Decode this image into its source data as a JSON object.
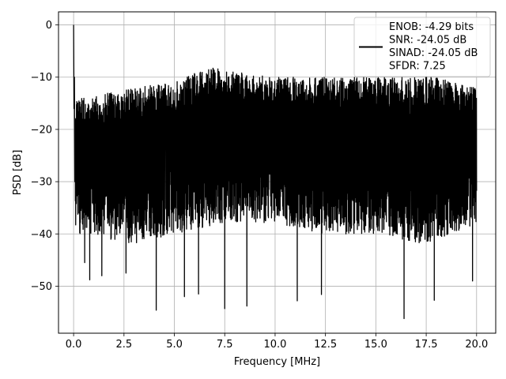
{
  "chart_data": {
    "type": "line",
    "title": "",
    "xlabel": "Frequency [MHz]",
    "ylabel": "PSD [dB]",
    "xlim": [
      -0.75,
      20.95
    ],
    "ylim": [
      -59,
      2.5
    ],
    "xticks": [
      0.0,
      2.5,
      5.0,
      7.5,
      10.0,
      12.5,
      15.0,
      17.5,
      20.0
    ],
    "xtick_labels": [
      "0.0",
      "2.5",
      "5.0",
      "7.5",
      "10.0",
      "12.5",
      "15.0",
      "17.5",
      "20.0"
    ],
    "yticks": [
      0,
      -10,
      -20,
      -30,
      -40,
      -50
    ],
    "ytick_labels": [
      "0",
      "−10",
      "−20",
      "−30",
      "−40",
      "−50"
    ],
    "grid": true,
    "legend_position": "top-right",
    "series": [
      {
        "color": "#000000",
        "x_range": [
          0.0,
          20.0
        ],
        "peak": {
          "x": 0.0,
          "y": 0.0
        },
        "upper_envelope": {
          "x": [
            0.5,
            3,
            5,
            6.75,
            8,
            10,
            12,
            14,
            16,
            18,
            20
          ],
          "y": [
            -14,
            -12,
            -11,
            -8,
            -9,
            -10,
            -10,
            -10,
            -10,
            -10,
            -12
          ]
        },
        "lower_envelope": {
          "x": [
            0.5,
            3,
            5,
            7.5,
            10,
            12.5,
            15,
            17.5,
            20
          ],
          "y": [
            -40,
            -42,
            -40,
            -38,
            -38,
            -40,
            -40,
            -42,
            -38
          ]
        },
        "deep_notches": [
          {
            "x": 0.55,
            "y": -45.5
          },
          {
            "x": 0.8,
            "y": -48.8
          },
          {
            "x": 1.4,
            "y": -48
          },
          {
            "x": 2.6,
            "y": -47.5
          },
          {
            "x": 4.1,
            "y": -54.6
          },
          {
            "x": 5.5,
            "y": -52
          },
          {
            "x": 6.2,
            "y": -51.5
          },
          {
            "x": 7.5,
            "y": -54.3
          },
          {
            "x": 8.6,
            "y": -53.8
          },
          {
            "x": 11.1,
            "y": -52.8
          },
          {
            "x": 12.3,
            "y": -51.6
          },
          {
            "x": 16.4,
            "y": -56.2
          },
          {
            "x": 17.9,
            "y": -52.7
          },
          {
            "x": 19.8,
            "y": -49
          }
        ]
      }
    ],
    "legend": {
      "lines": [
        "ENOB: -4.29 bits",
        "SNR: -24.05 dB",
        "SINAD: -24.05 dB",
        "SFDR: 7.25"
      ]
    }
  }
}
